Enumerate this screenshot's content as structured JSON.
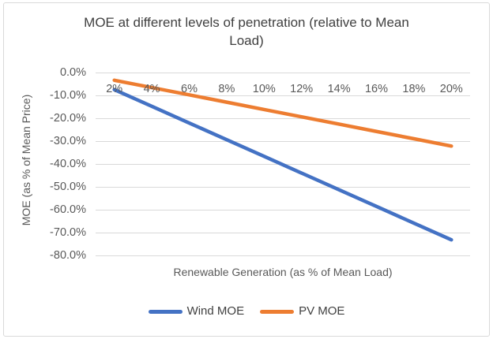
{
  "chart_data": {
    "type": "line",
    "title": "MOE at different levels of penetration (relative to Mean Load)",
    "xlabel": "Renewable Generation (as % of Mean Load)",
    "ylabel": "MOE (as % of Mean Price)",
    "categories": [
      "2%",
      "4%",
      "6%",
      "8%",
      "10%",
      "12%",
      "14%",
      "16%",
      "18%",
      "20%"
    ],
    "x_values": [
      2,
      4,
      6,
      8,
      10,
      12,
      14,
      16,
      18,
      20
    ],
    "series": [
      {
        "name": "Wind MOE",
        "color": "#4472C4",
        "values": [
          -7.3,
          -14.6,
          -21.9,
          -29.2,
          -36.5,
          -43.8,
          -51.1,
          -58.4,
          -65.7,
          -73.0
        ]
      },
      {
        "name": "PV MOE",
        "color": "#ED7D31",
        "values": [
          -3.2,
          -6.4,
          -9.6,
          -12.8,
          -16.0,
          -19.2,
          -22.4,
          -25.6,
          -28.8,
          -32.0
        ]
      }
    ],
    "y_tick_labels": [
      "0.0%",
      "-10.0%",
      "-20.0%",
      "-30.0%",
      "-40.0%",
      "-50.0%",
      "-60.0%",
      "-70.0%",
      "-80.0%"
    ],
    "y_tick_values": [
      0,
      -10,
      -20,
      -30,
      -40,
      -50,
      -60,
      -70,
      -80
    ],
    "ylim": [
      -80,
      0
    ],
    "grid": "horizontal",
    "legend_position": "bottom"
  },
  "colors": {
    "series_blue": "#4472C4",
    "series_orange": "#ED7D31",
    "gridline": "#D9D9D9",
    "frame": "#D9D9D9",
    "text": "#595959",
    "title": "#404040"
  }
}
